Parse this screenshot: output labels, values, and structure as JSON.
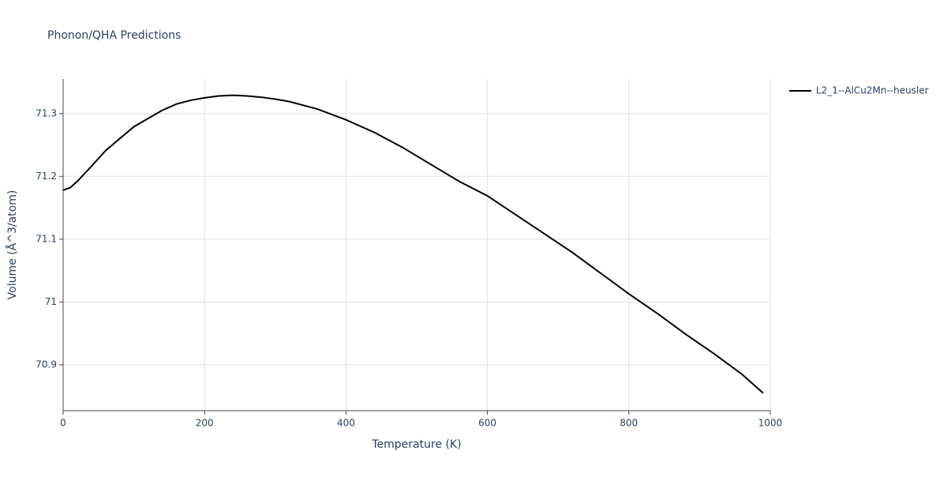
{
  "chart_data": {
    "type": "line",
    "title": "Phonon/QHA Predictions",
    "x_label": "Temperature (K)",
    "y_label": "Volume (Å^3/atom)",
    "x": [
      0,
      10,
      20,
      40,
      60,
      80,
      100,
      120,
      140,
      160,
      180,
      200,
      220,
      240,
      260,
      280,
      300,
      320,
      360,
      400,
      440,
      480,
      520,
      560,
      600,
      640,
      680,
      720,
      760,
      800,
      840,
      880,
      920,
      960,
      990
    ],
    "series": [
      {
        "name": "L2_1--AlCu2Mn--heusler",
        "color": "#000000",
        "values": [
          71.178,
          71.182,
          71.192,
          71.216,
          71.241,
          71.26,
          71.279,
          71.292,
          71.305,
          71.315,
          71.321,
          71.325,
          71.328,
          71.329,
          71.328,
          71.326,
          71.323,
          71.319,
          71.307,
          71.29,
          71.27,
          71.246,
          71.219,
          71.192,
          71.169,
          71.139,
          71.109,
          71.079,
          71.046,
          71.013,
          70.982,
          70.949,
          70.918,
          70.885,
          70.855
        ]
      }
    ],
    "xlim": [
      0,
      1000
    ],
    "xticks": [
      0,
      200,
      400,
      600,
      800,
      1000
    ],
    "ylim": [
      70.827,
      71.355
    ],
    "yticks": [
      70.9,
      71,
      71.1,
      71.2,
      71.3
    ],
    "grid": true,
    "legend": "top-right"
  }
}
